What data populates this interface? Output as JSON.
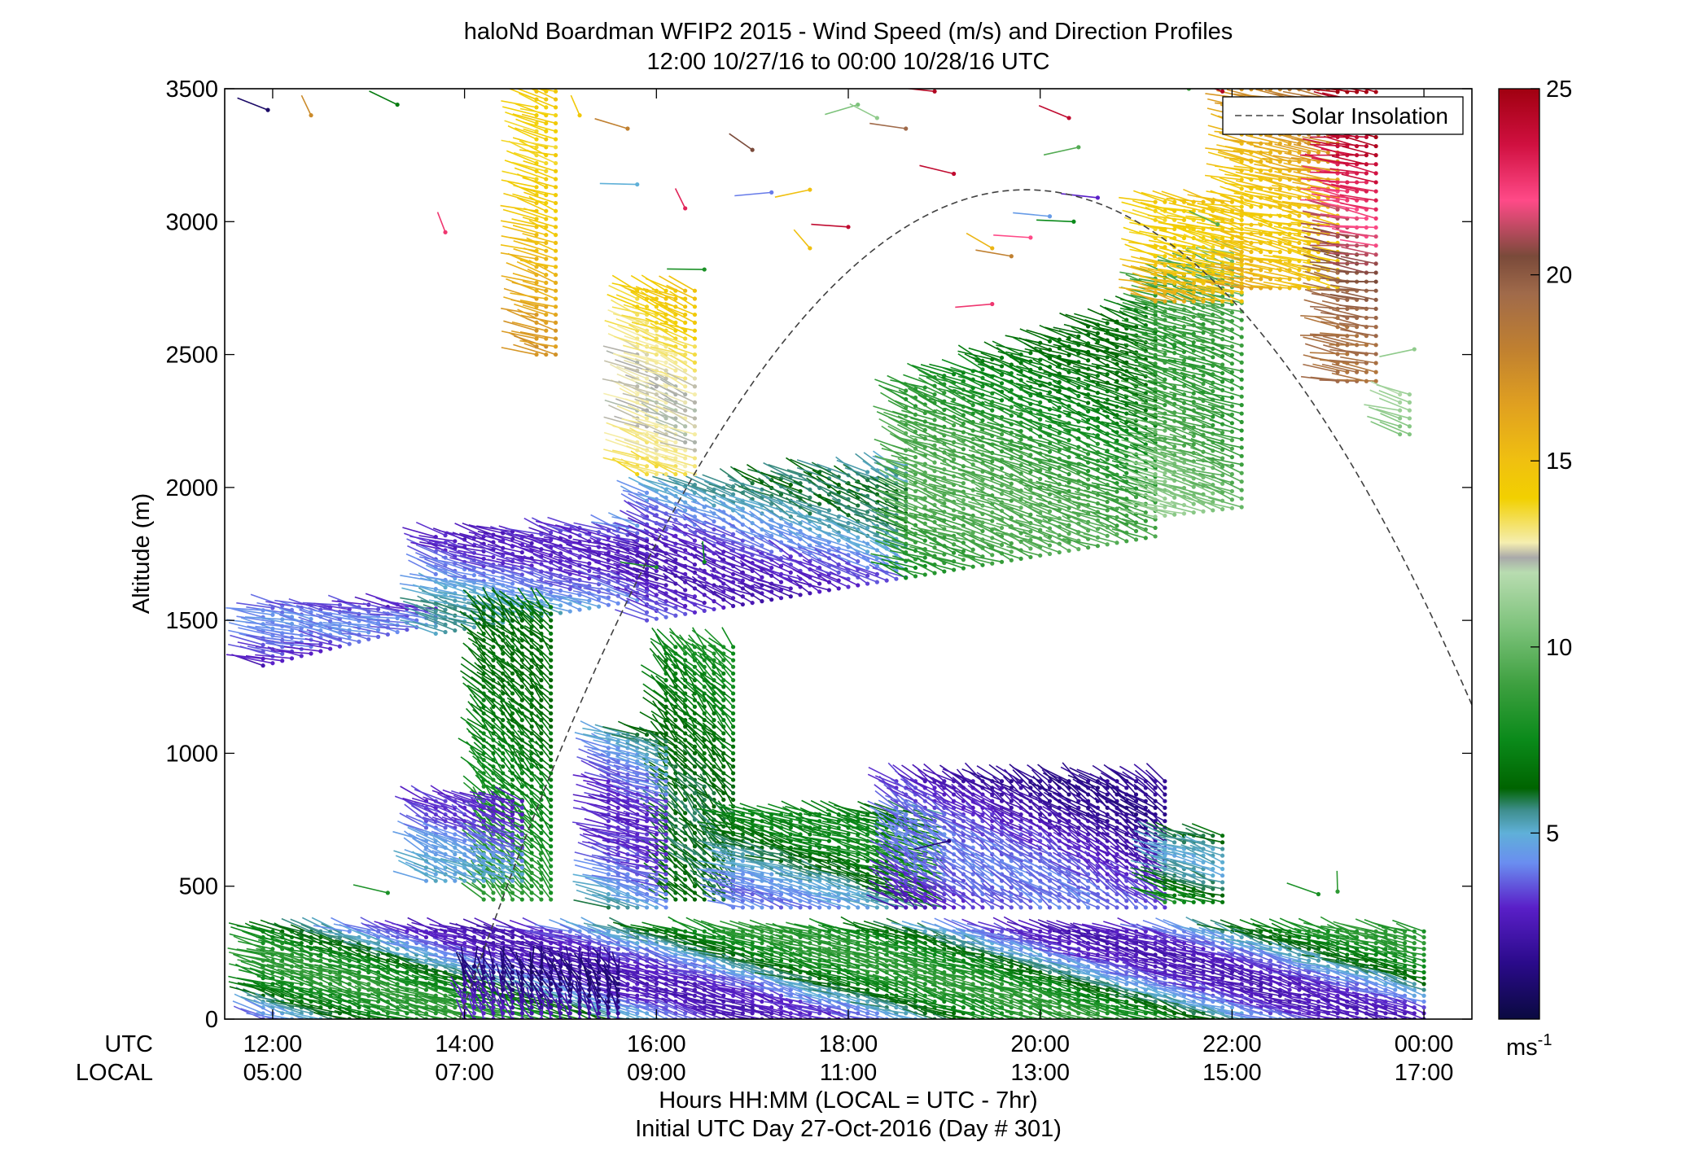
{
  "chart_data": {
    "type": "wind-barb-profile",
    "title": "haloNd Boardman WFIP2 2015 - Wind Speed (m/s) and Direction Profiles",
    "subtitle": "12:00 10/27/16 to 00:00 10/28/16  UTC",
    "ylabel": "Altitude (m)",
    "xlabel": "Hours HH:MM  (LOCAL = UTC - 7hr)",
    "xlabel2": "Initial UTC Day 27-Oct-2016 (Day # 301)",
    "row_label_utc": "UTC",
    "row_label_local": "LOCAL",
    "x_range_hours": [
      11.5,
      24.5
    ],
    "ylim": [
      0,
      3500
    ],
    "y_ticks": [
      0,
      500,
      1000,
      1500,
      2000,
      2500,
      3000,
      3500
    ],
    "y_tick_labels": [
      "0",
      "500",
      "1000",
      "1500",
      "2000",
      "2500",
      "3000",
      "3500"
    ],
    "x_ticks_hours": [
      12,
      14,
      16,
      18,
      20,
      22,
      24
    ],
    "x_tick_labels_utc": [
      "12:00",
      "14:00",
      "16:00",
      "18:00",
      "20:00",
      "22:00",
      "00:00"
    ],
    "x_tick_labels_local": [
      "05:00",
      "07:00",
      "09:00",
      "11:00",
      "13:00",
      "15:00",
      "17:00"
    ],
    "legend": {
      "label": "Solar Insolation",
      "placement": "top-right"
    },
    "colorbar": {
      "range": [
        0,
        25
      ],
      "ticks": [
        5,
        10,
        15,
        20,
        25
      ],
      "tick_labels": [
        "5",
        "10",
        "15",
        "20",
        "25"
      ],
      "unit_label": "ms",
      "unit_exponent": "-1"
    },
    "solar_insolation": {
      "peak_hour": 19.85,
      "peak_altitude": 3120,
      "half_width_hours": 5.9,
      "style": "dashed",
      "color": "#404040"
    },
    "regimes": [
      {
        "t0": 11.9,
        "t1": 13.7,
        "base": 1330,
        "top": 1560,
        "top_slope": 0,
        "base_slope": 90,
        "dz": 26,
        "speed": [
          2.5,
          4.2
        ],
        "dir": 290
      },
      {
        "t0": 13.7,
        "t1": 15.9,
        "base": 1450,
        "top": 1820,
        "top_slope": 20,
        "base_slope": 60,
        "dz": 28,
        "speed": [
          2.8,
          5.5
        ],
        "dir": 300
      },
      {
        "t0": 15.9,
        "t1": 18.6,
        "base": 1500,
        "top": 1990,
        "top_slope": 40,
        "base_slope": 60,
        "dz": 30,
        "speed": [
          2.5,
          6.0
        ],
        "dir": 310
      },
      {
        "t0": 18.6,
        "t1": 21.2,
        "base": 1660,
        "top": 2380,
        "top_slope": 120,
        "base_slope": 60,
        "dz": 32,
        "speed": [
          6.5,
          9.5
        ],
        "dir": 305
      },
      {
        "t0": 21.2,
        "t1": 22.1,
        "base": 1890,
        "top": 2800,
        "top_slope": 120,
        "base_slope": 40,
        "dz": 32,
        "speed": [
          8.5,
          12.0
        ],
        "dir": 300
      },
      {
        "t0": 21.2,
        "t1": 22.1,
        "base": 2700,
        "top": 3100,
        "top_slope": 0,
        "base_slope": 0,
        "dz": 34,
        "speed": [
          14.0,
          16.5
        ],
        "dir": 295
      },
      {
        "t0": 22.1,
        "t1": 23.1,
        "base": 2750,
        "top": 3500,
        "top_slope": 0,
        "base_slope": 0,
        "dz": 34,
        "speed": [
          14.5,
          19.0
        ],
        "dir": 290
      },
      {
        "t0": 23.1,
        "t1": 23.5,
        "base": 2400,
        "top": 3500,
        "top_slope": 0,
        "base_slope": 0,
        "dz": 34,
        "speed": [
          19.0,
          25.0
        ],
        "dir": 285
      },
      {
        "t0": 23.75,
        "t1": 23.85,
        "base": 2200,
        "top": 2350,
        "top_slope": 0,
        "base_slope": 0,
        "dz": 30,
        "speed": [
          10.5,
          11.5
        ],
        "dir": 300
      },
      {
        "t0": 14.75,
        "t1": 14.95,
        "base": 2500,
        "top": 3500,
        "top_slope": 0,
        "base_slope": 0,
        "dz": 30,
        "speed": [
          14.0,
          17.5
        ],
        "dir": 300
      },
      {
        "t0": 15.8,
        "t1": 16.4,
        "base": 2050,
        "top": 2750,
        "top_slope": 0,
        "base_slope": 0,
        "dz": 30,
        "speed": [
          12.5,
          15.5
        ],
        "dir": 305
      },
      {
        "t0": 14.2,
        "t1": 14.95,
        "base": 450,
        "top": 1550,
        "top_slope": 0,
        "base_slope": 0,
        "dz": 25,
        "speed": [
          6.5,
          8.5
        ],
        "dir": 330
      },
      {
        "t0": 16.1,
        "t1": 16.8,
        "base": 450,
        "top": 1400,
        "top_slope": 0,
        "base_slope": 0,
        "dz": 25,
        "speed": [
          6.0,
          8.0
        ],
        "dir": 330
      },
      {
        "t0": 15.5,
        "t1": 16.1,
        "base": 420,
        "top": 1070,
        "top_slope": 0,
        "base_slope": 0,
        "dz": 25,
        "speed": [
          3.0,
          7.5
        ],
        "dir": 300
      },
      {
        "t0": 16.8,
        "t1": 19.0,
        "base": 420,
        "top": 780,
        "top_slope": 0,
        "base_slope": 0,
        "dz": 25,
        "speed": [
          4.0,
          7.5
        ],
        "dir": 300
      },
      {
        "t0": 18.5,
        "t1": 21.3,
        "base": 420,
        "top": 900,
        "top_slope": 0,
        "base_slope": 0,
        "dz": 25,
        "speed": [
          1.5,
          4.0
        ],
        "dir": 320
      },
      {
        "t0": 13.6,
        "t1": 14.6,
        "base": 520,
        "top": 820,
        "top_slope": 0,
        "base_slope": 0,
        "dz": 25,
        "speed": [
          3.0,
          5.0
        ],
        "dir": 310
      },
      {
        "t0": 21.3,
        "t1": 21.9,
        "base": 440,
        "top": 700,
        "top_slope": 0,
        "base_slope": 0,
        "dz": 25,
        "speed": [
          5.0,
          8.5
        ],
        "dir": 300
      },
      {
        "t0": 11.9,
        "t1": 24.0,
        "base": 0,
        "top": 330,
        "top_slope": 0,
        "base_slope": 0,
        "dz": 22,
        "speed": [
          2.5,
          8.5
        ],
        "dir": 300
      },
      {
        "t0": 14.0,
        "t1": 15.6,
        "base": 0,
        "top": 200,
        "top_slope": 0,
        "base_slope": 0,
        "dz": 22,
        "speed": [
          1.0,
          3.0
        ],
        "dir": 350
      }
    ],
    "isolated_barbs": [
      {
        "t": 11.95,
        "z": 3420,
        "speed": 0.8
      },
      {
        "t": 12.4,
        "z": 3400,
        "speed": 17.5
      },
      {
        "t": 13.3,
        "z": 3440,
        "speed": 7.0
      },
      {
        "t": 13.8,
        "z": 2960,
        "speed": 22.5
      },
      {
        "t": 15.2,
        "z": 3400,
        "speed": 14.5
      },
      {
        "t": 15.7,
        "z": 3350,
        "speed": 18.0
      },
      {
        "t": 15.8,
        "z": 3140,
        "speed": 5.0
      },
      {
        "t": 16.3,
        "z": 3050,
        "speed": 23.0
      },
      {
        "t": 16.5,
        "z": 2820,
        "speed": 8.0
      },
      {
        "t": 17.0,
        "z": 3270,
        "speed": 20.5
      },
      {
        "t": 17.2,
        "z": 3110,
        "speed": 4.0
      },
      {
        "t": 17.6,
        "z": 3120,
        "speed": 15.0
      },
      {
        "t": 17.6,
        "z": 2900,
        "speed": 15.0
      },
      {
        "t": 18.0,
        "z": 2980,
        "speed": 24.0
      },
      {
        "t": 18.1,
        "z": 3440,
        "speed": 10.5
      },
      {
        "t": 18.3,
        "z": 3390,
        "speed": 11.0
      },
      {
        "t": 18.6,
        "z": 3350,
        "speed": 19.5
      },
      {
        "t": 18.9,
        "z": 3490,
        "speed": 24.5
      },
      {
        "t": 19.1,
        "z": 3180,
        "speed": 24.0
      },
      {
        "t": 19.5,
        "z": 2690,
        "speed": 22.5
      },
      {
        "t": 19.5,
        "z": 2900,
        "speed": 15.5
      },
      {
        "t": 19.7,
        "z": 2870,
        "speed": 18.0
      },
      {
        "t": 19.9,
        "z": 2940,
        "speed": 22.0
      },
      {
        "t": 20.1,
        "z": 3020,
        "speed": 4.5
      },
      {
        "t": 20.35,
        "z": 3000,
        "speed": 7.5
      },
      {
        "t": 20.4,
        "z": 3280,
        "speed": 9.5
      },
      {
        "t": 20.6,
        "z": 3090,
        "speed": 3.0
      },
      {
        "t": 20.3,
        "z": 3390,
        "speed": 24.0
      },
      {
        "t": 19.05,
        "z": 670,
        "speed": 1.2
      },
      {
        "t": 21.55,
        "z": 3500,
        "speed": 9.0
      },
      {
        "t": 21.9,
        "z": 3490,
        "speed": 24.5
      },
      {
        "t": 22.2,
        "z": 3230,
        "speed": 15.5
      },
      {
        "t": 21.85,
        "z": 2990,
        "speed": 9.5
      },
      {
        "t": 13.2,
        "z": 475,
        "speed": 8.0
      },
      {
        "t": 22.9,
        "z": 470,
        "speed": 8.0
      },
      {
        "t": 23.1,
        "z": 480,
        "speed": 8.5
      },
      {
        "t": 23.9,
        "z": 2520,
        "speed": 11.0
      },
      {
        "t": 21.4,
        "z": 2530,
        "speed": 8.0
      },
      {
        "t": 16.0,
        "z": 1700,
        "speed": 8.0
      },
      {
        "t": 16.5,
        "z": 1720,
        "speed": 7.5
      }
    ]
  }
}
